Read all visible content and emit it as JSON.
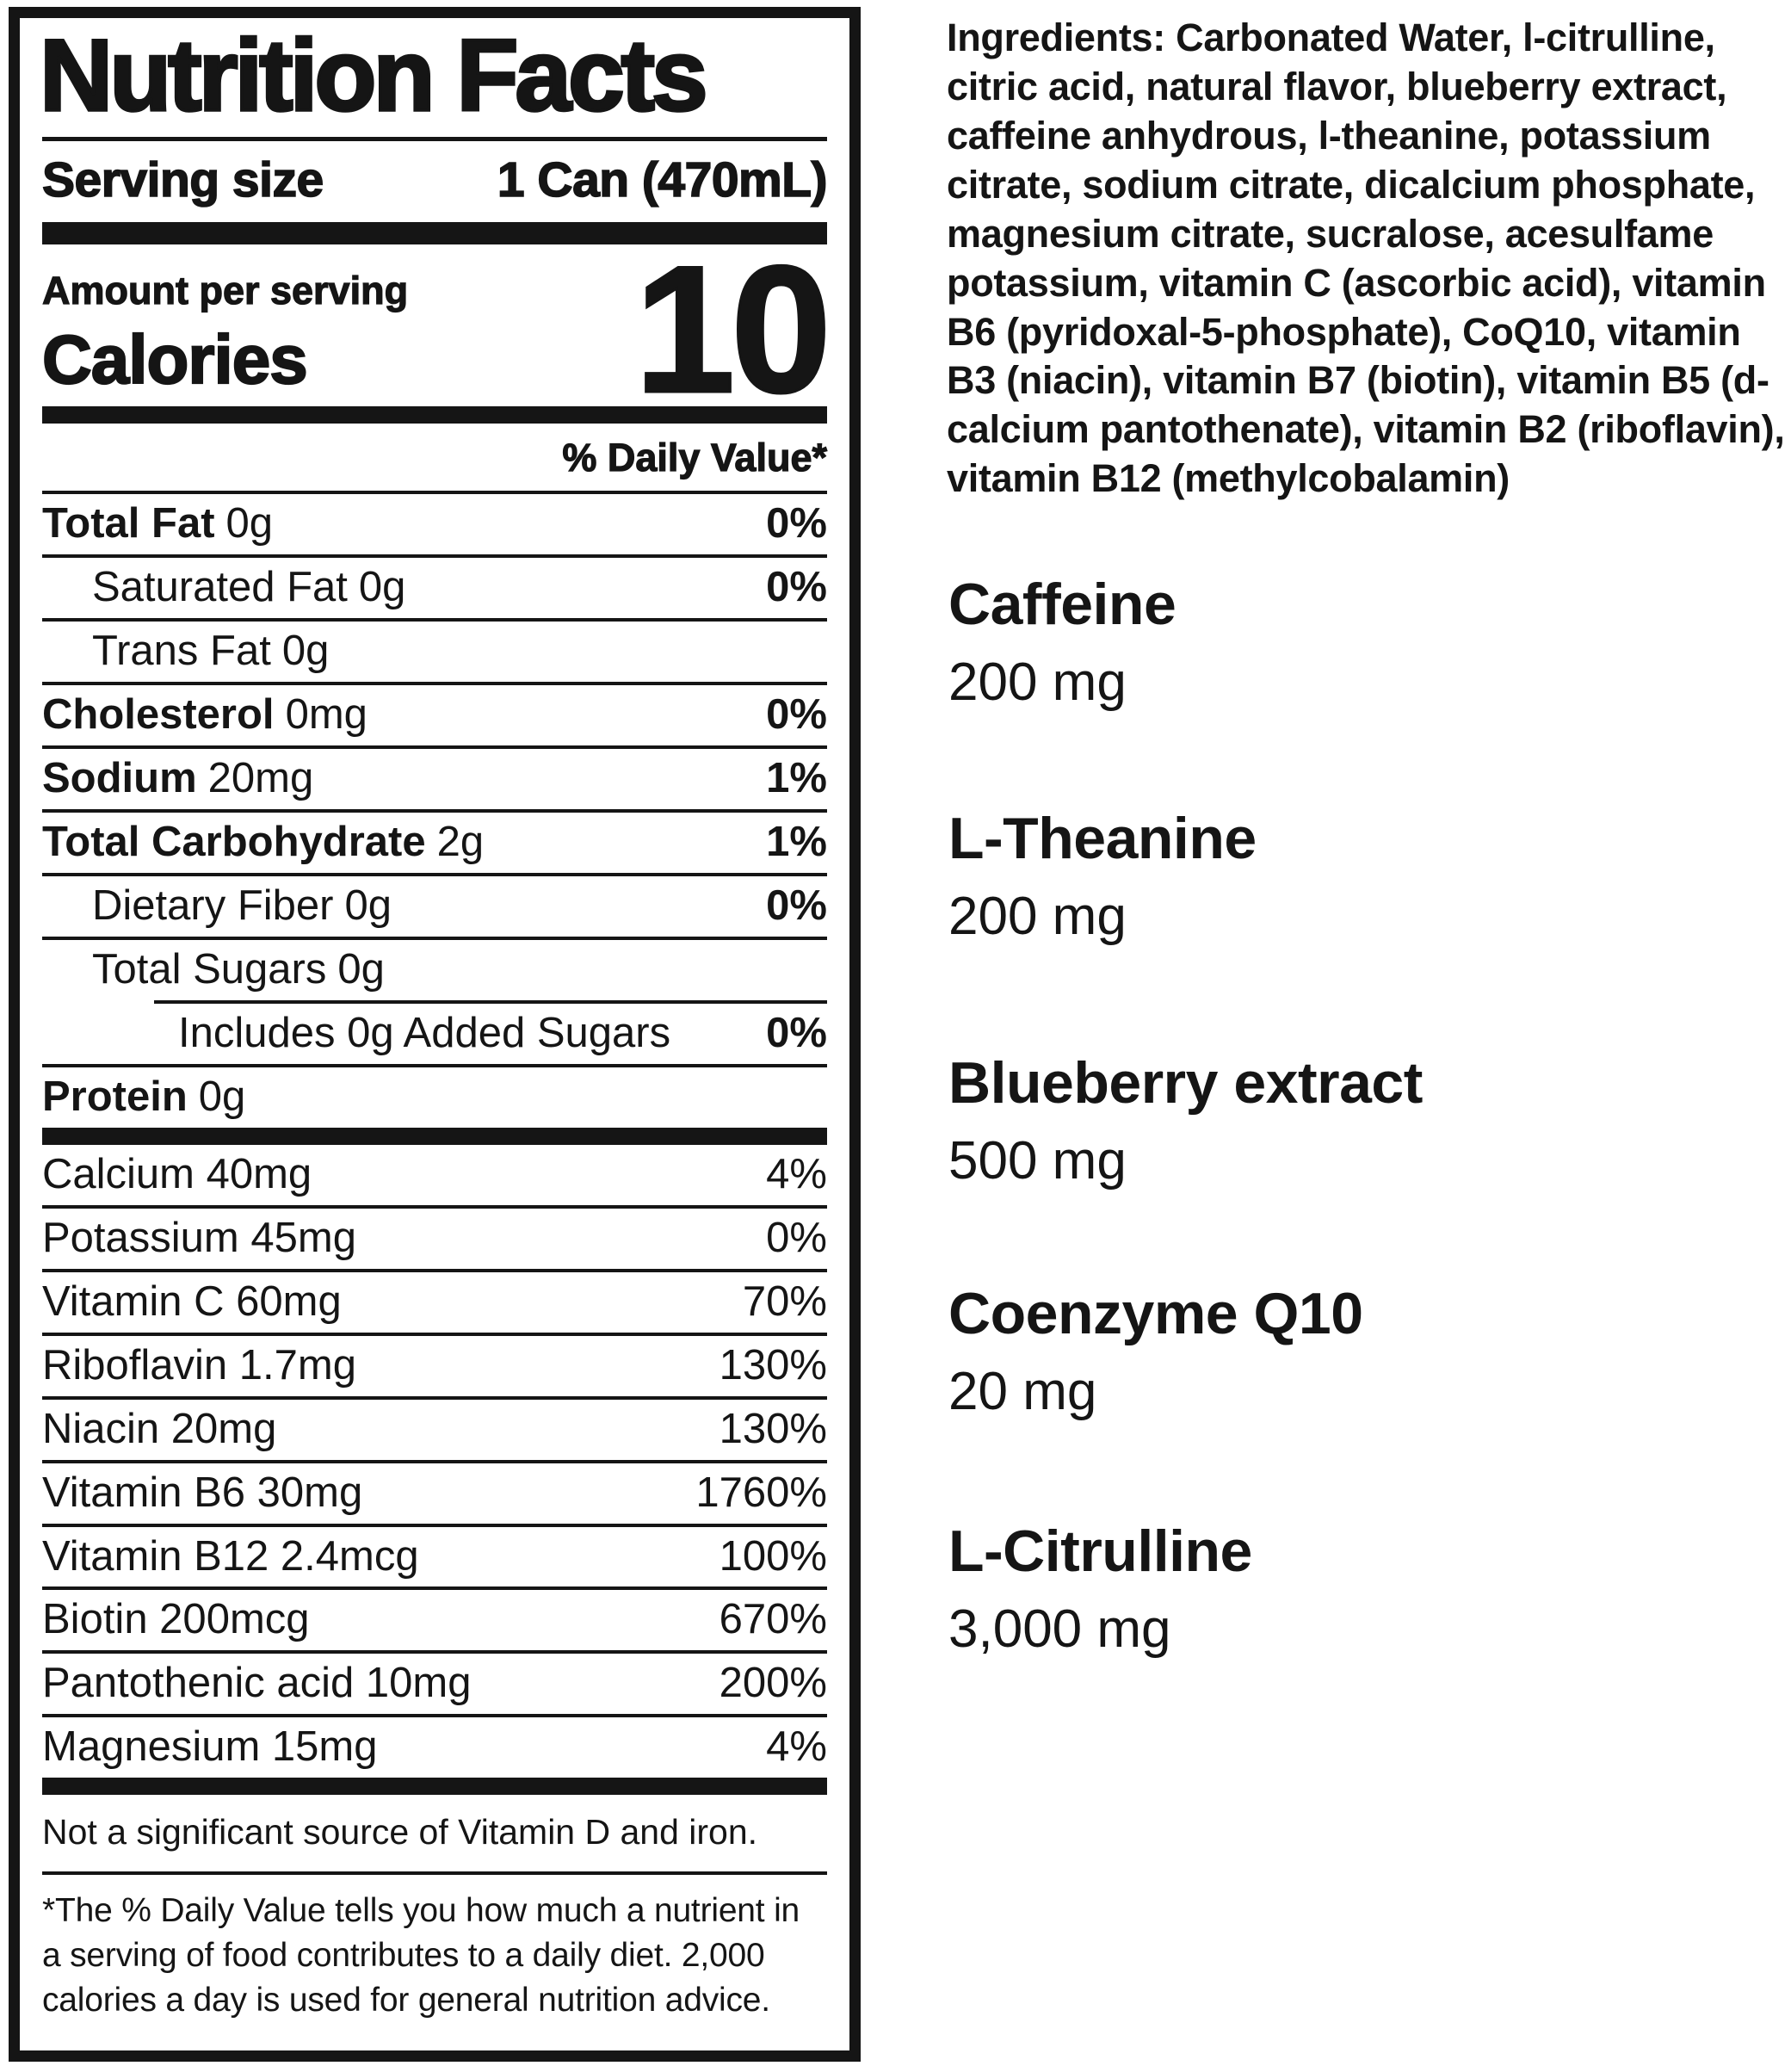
{
  "colors": {
    "text": "#151515",
    "background": "#ffffff"
  },
  "label": {
    "title": "Nutrition Facts",
    "serving_size_label": "Serving size",
    "serving_size_value": "1 Can (470mL)",
    "amount_per_serving": "Amount per serving",
    "calories_label": "Calories",
    "calories_value": "10",
    "daily_value_header": "% Daily Value*",
    "rows": [
      {
        "name": "Total Fat",
        "amount": "0g",
        "dv": "0%"
      },
      {
        "name": "Saturated Fat",
        "amount": "0g",
        "dv": "0%"
      },
      {
        "name": "Trans Fat",
        "amount": "0g",
        "dv": ""
      },
      {
        "name": "Cholesterol",
        "amount": "0mg",
        "dv": "0%"
      },
      {
        "name": "Sodium",
        "amount": "20mg",
        "dv": "1%"
      },
      {
        "name": "Total Carbohydrate",
        "amount": "2g",
        "dv": "1%"
      },
      {
        "name": "Dietary Fiber",
        "amount": "0g",
        "dv": "0%"
      },
      {
        "name": "Total Sugars",
        "amount": "0g",
        "dv": ""
      },
      {
        "name": "Includes 0g Added Sugars",
        "amount": "",
        "dv": "0%"
      },
      {
        "name": "Protein",
        "amount": "0g",
        "dv": ""
      }
    ],
    "micros": [
      {
        "name": "Calcium 40mg",
        "dv": "4%"
      },
      {
        "name": "Potassium 45mg",
        "dv": "0%"
      },
      {
        "name": "Vitamin C 60mg",
        "dv": "70%"
      },
      {
        "name": "Riboflavin 1.7mg",
        "dv": "130%"
      },
      {
        "name": "Niacin 20mg",
        "dv": "130%"
      },
      {
        "name": "Vitamin B6 30mg",
        "dv": "1760%"
      },
      {
        "name": "Vitamin B12 2.4mcg",
        "dv": "100%"
      },
      {
        "name": "Biotin 200mcg",
        "dv": "670%"
      },
      {
        "name": "Pantothenic acid 10mg",
        "dv": "200%"
      },
      {
        "name": "Magnesium 15mg",
        "dv": "4%"
      }
    ],
    "not_significant": "Not a significant source of Vitamin D and iron.",
    "footnote": "*The % Daily Value tells you how much a nutrient in a serving of food contributes to a daily diet. 2,000 calories a day is used for general nutrition advice."
  },
  "ingredients_text": "Ingredients: Carbonated Water, l-citrulline, citric acid, natural flavor, blueberry extract, caffeine anhydrous, l-theanine, potassium citrate, sodium citrate, dicalcium phosphate, magnesium citrate, sucralose, acesulfame potassium, vitamin C (ascorbic acid), vitamin B6 (pyridoxal-5-phosphate), CoQ10, vitamin B3 (niacin), vitamin B7 (biotin), vitamin B5 (d-calcium pantothenate), vitamin B2 (riboflavin), vitamin B12 (methylcobalamin)",
  "supplements": [
    {
      "name": "Caffeine",
      "amount": "200 mg"
    },
    {
      "name": "L-Theanine",
      "amount": "200 mg"
    },
    {
      "name": "Blueberry extract",
      "amount": "500 mg"
    },
    {
      "name": "Coenzyme Q10",
      "amount": "20 mg"
    },
    {
      "name": "L-Citrulline",
      "amount": "3,000 mg"
    }
  ]
}
